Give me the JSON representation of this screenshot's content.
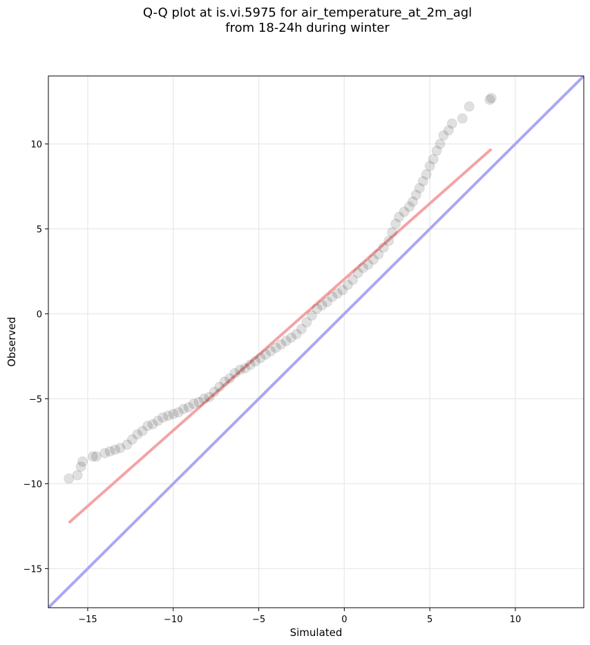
{
  "chart_data": {
    "type": "scatter",
    "title_line1": "Q-Q plot at is.vi.5975 for air_temperature_at_2m_agl",
    "title_line2": "from 18-24h during winter",
    "xlabel": "Simulated",
    "ylabel": "Observed",
    "xlim": [
      -17.3,
      14.0
    ],
    "ylim": [
      -17.3,
      14.0
    ],
    "xticks": [
      -15,
      -10,
      -5,
      0,
      5,
      10
    ],
    "yticks": [
      -15,
      -10,
      -5,
      0,
      5,
      10
    ],
    "xtick_labels": [
      "−15",
      "−10",
      "−5",
      "0",
      "5",
      "10"
    ],
    "ytick_labels": [
      "−15",
      "−10",
      "−5",
      "0",
      "5",
      "10"
    ],
    "grid": true,
    "colors": {
      "points": "#000000",
      "fit_line": "#f4a3a3",
      "identity_line": "#a8a8f4",
      "grid": "#ebebeb"
    },
    "quantile_points": [
      [
        -16.1,
        -9.7
      ],
      [
        -15.6,
        -9.5
      ],
      [
        -15.4,
        -9.0
      ],
      [
        -15.3,
        -8.7
      ],
      [
        -14.7,
        -8.4
      ],
      [
        -14.5,
        -8.4
      ],
      [
        -14.0,
        -8.2
      ],
      [
        -13.7,
        -8.1
      ],
      [
        -13.4,
        -8.0
      ],
      [
        -13.1,
        -7.9
      ],
      [
        -12.7,
        -7.7
      ],
      [
        -12.4,
        -7.4
      ],
      [
        -12.1,
        -7.1
      ],
      [
        -11.8,
        -6.9
      ],
      [
        -11.5,
        -6.6
      ],
      [
        -11.2,
        -6.5
      ],
      [
        -10.9,
        -6.3
      ],
      [
        -10.6,
        -6.1
      ],
      [
        -10.3,
        -6.0
      ],
      [
        -10.0,
        -5.9
      ],
      [
        -9.7,
        -5.8
      ],
      [
        -9.4,
        -5.6
      ],
      [
        -9.1,
        -5.5
      ],
      [
        -8.8,
        -5.3
      ],
      [
        -8.5,
        -5.2
      ],
      [
        -8.2,
        -5.0
      ],
      [
        -7.9,
        -4.9
      ],
      [
        -7.6,
        -4.6
      ],
      [
        -7.3,
        -4.3
      ],
      [
        -7.0,
        -4.0
      ],
      [
        -6.7,
        -3.8
      ],
      [
        -6.4,
        -3.5
      ],
      [
        -6.1,
        -3.3
      ],
      [
        -5.8,
        -3.2
      ],
      [
        -5.5,
        -3.0
      ],
      [
        -5.2,
        -2.8
      ],
      [
        -4.9,
        -2.6
      ],
      [
        -4.6,
        -2.4
      ],
      [
        -4.3,
        -2.2
      ],
      [
        -4.0,
        -2.0
      ],
      [
        -3.7,
        -1.8
      ],
      [
        -3.4,
        -1.6
      ],
      [
        -3.1,
        -1.4
      ],
      [
        -2.8,
        -1.2
      ],
      [
        -2.5,
        -0.9
      ],
      [
        -2.2,
        -0.5
      ],
      [
        -1.9,
        -0.1
      ],
      [
        -1.6,
        0.3
      ],
      [
        -1.3,
        0.5
      ],
      [
        -1.0,
        0.7
      ],
      [
        -0.7,
        1.0
      ],
      [
        -0.4,
        1.2
      ],
      [
        -0.1,
        1.4
      ],
      [
        0.2,
        1.7
      ],
      [
        0.5,
        2.0
      ],
      [
        0.8,
        2.4
      ],
      [
        1.1,
        2.7
      ],
      [
        1.4,
        2.9
      ],
      [
        1.7,
        3.2
      ],
      [
        2.0,
        3.5
      ],
      [
        2.3,
        3.9
      ],
      [
        2.6,
        4.3
      ],
      [
        2.8,
        4.8
      ],
      [
        3.0,
        5.3
      ],
      [
        3.2,
        5.7
      ],
      [
        3.5,
        6.0
      ],
      [
        3.8,
        6.3
      ],
      [
        4.0,
        6.6
      ],
      [
        4.2,
        7.0
      ],
      [
        4.4,
        7.4
      ],
      [
        4.6,
        7.8
      ],
      [
        4.8,
        8.2
      ],
      [
        5.0,
        8.7
      ],
      [
        5.2,
        9.1
      ],
      [
        5.4,
        9.6
      ],
      [
        5.6,
        10.0
      ],
      [
        5.8,
        10.5
      ],
      [
        6.1,
        10.8
      ],
      [
        6.3,
        11.2
      ],
      [
        6.9,
        11.5
      ],
      [
        7.3,
        12.2
      ],
      [
        8.5,
        12.6
      ],
      [
        8.6,
        12.7
      ]
    ],
    "fit_line": {
      "x": [
        -16.1,
        8.6
      ],
      "y": [
        -12.3,
        9.7
      ]
    },
    "identity_line": {
      "x": [
        -17.3,
        14.0
      ],
      "y": [
        -17.3,
        14.0
      ]
    }
  }
}
